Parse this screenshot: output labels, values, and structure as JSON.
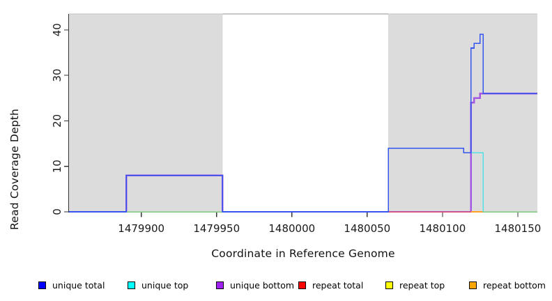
{
  "chart_data": {
    "type": "line",
    "subtype": "step-coverage-plot",
    "title": "",
    "xlabel": "Coordinate in Reference Genome",
    "ylabel": "Read Coverage Depth",
    "xlim": [
      1479852,
      1480163
    ],
    "ylim": [
      0,
      43.5
    ],
    "x_ticks": [
      1479900,
      1479950,
      1480000,
      1480050,
      1480100,
      1480150
    ],
    "y_ticks": [
      0,
      10,
      20,
      30,
      40
    ],
    "grid": false,
    "background": "#ffffff",
    "region_fill": "#dcdcdc",
    "region_top_edge_color": "#c4c4c4",
    "gap_top_line_color": "#8f8f8f",
    "shaded_regions": [
      {
        "x0": 1479852,
        "x1": 1479954
      },
      {
        "x0": 1480064,
        "x1": 1480163
      }
    ],
    "series": [
      {
        "name": "unique bottom",
        "color": "#a558e2",
        "width": 2.4,
        "points": [
          [
            1479852,
            0
          ],
          [
            1479890,
            0
          ],
          [
            1479890,
            8
          ],
          [
            1479954,
            8
          ],
          [
            1479954,
            0
          ],
          [
            1480119,
            0
          ],
          [
            1480119,
            24
          ],
          [
            1480121,
            24
          ],
          [
            1480121,
            25
          ],
          [
            1480125,
            25
          ],
          [
            1480125,
            26
          ],
          [
            1480163,
            26
          ]
        ]
      },
      {
        "name": "unlabeled green baseline (left)",
        "color": "#7cc87c",
        "width": 1.5,
        "points": [
          [
            1479890,
            0
          ],
          [
            1479954,
            0
          ]
        ]
      },
      {
        "name": "unlabeled green baseline (right)",
        "color": "#7cc87c",
        "width": 1.5,
        "points": [
          [
            1480127,
            0
          ],
          [
            1480163,
            0
          ]
        ]
      },
      {
        "name": "repeat total",
        "color": "#e0506e",
        "width": 1.5,
        "points": [
          [
            1480064,
            0
          ],
          [
            1480119,
            0
          ]
        ]
      },
      {
        "name": "repeat bottom",
        "color": "#ffa126",
        "width": 1.8,
        "points": [
          [
            1480119,
            0
          ],
          [
            1480127,
            0
          ]
        ]
      },
      {
        "name": "unique top",
        "color": "#52e2e6",
        "width": 1.6,
        "points": [
          [
            1480119,
            13
          ],
          [
            1480127,
            13
          ],
          [
            1480127,
            0
          ]
        ]
      },
      {
        "name": "unique total",
        "color": "#3455ee",
        "width": 1.6,
        "points": [
          [
            1479852,
            0
          ],
          [
            1479890,
            0
          ],
          [
            1479890,
            8
          ],
          [
            1479954,
            8
          ],
          [
            1479954,
            0
          ],
          [
            1480064,
            0
          ],
          [
            1480064,
            14
          ],
          [
            1480114,
            14
          ],
          [
            1480114,
            13
          ],
          [
            1480119,
            13
          ],
          [
            1480119,
            36
          ],
          [
            1480121,
            36
          ],
          [
            1480121,
            37
          ],
          [
            1480125,
            37
          ],
          [
            1480125,
            39
          ],
          [
            1480127,
            39
          ],
          [
            1480127,
            26
          ],
          [
            1480163,
            26
          ]
        ]
      }
    ],
    "legend": [
      {
        "label": "unique total",
        "color": "#0000ff"
      },
      {
        "label": "unique top",
        "color": "#00ffff"
      },
      {
        "label": "unique bottom",
        "color": "#a020f0"
      },
      {
        "label": "repeat total",
        "color": "#ff0000"
      },
      {
        "label": "repeat top",
        "color": "#ffff00"
      },
      {
        "label": "repeat bottom",
        "color": "#ffa500"
      }
    ],
    "legend_position": "bottom"
  }
}
